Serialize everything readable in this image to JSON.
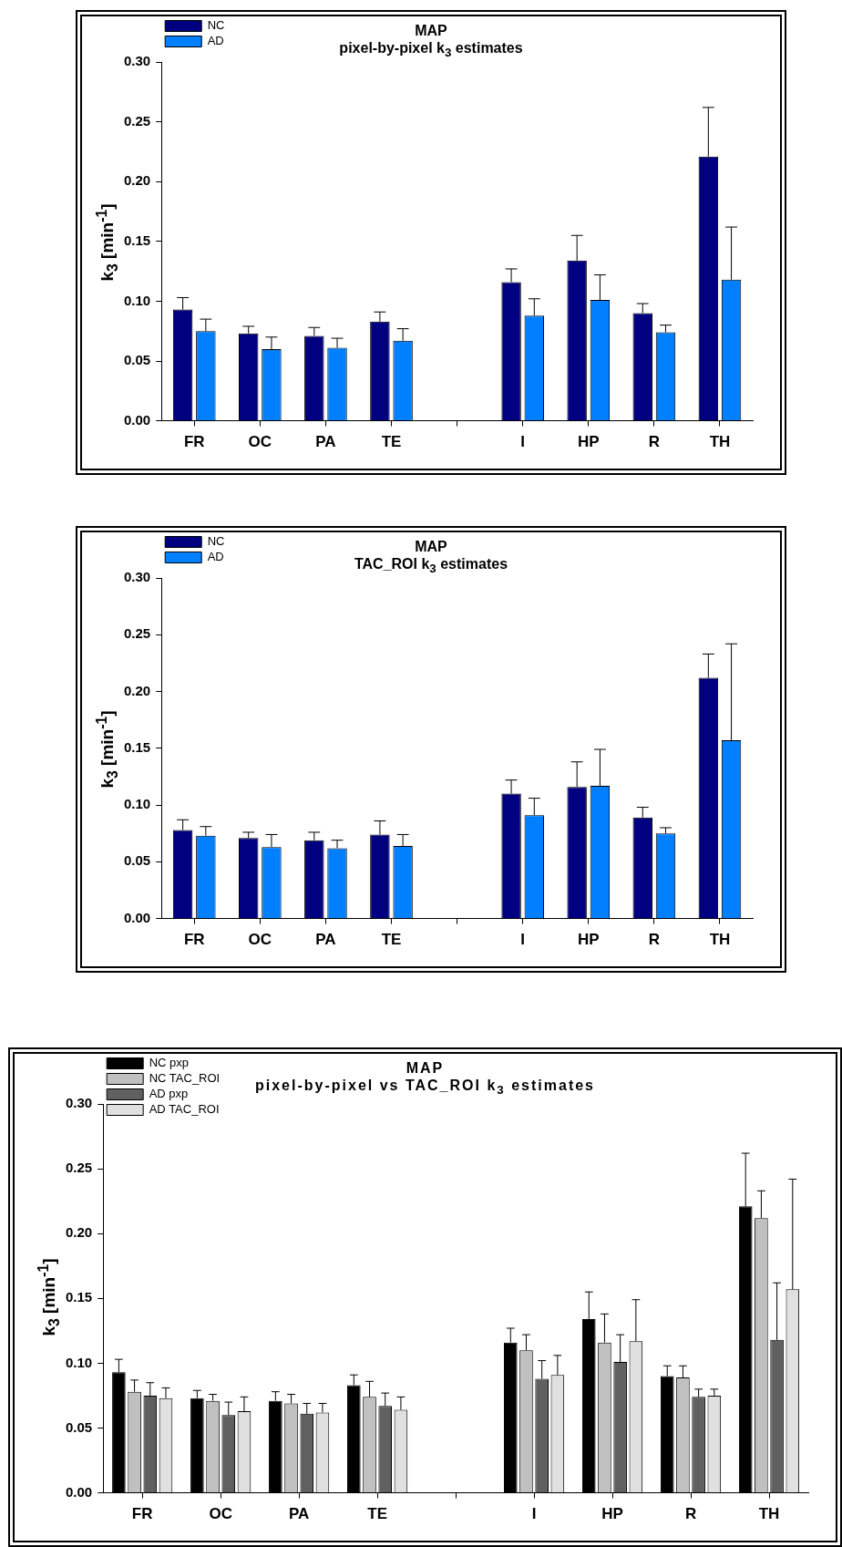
{
  "chart_data": [
    {
      "type": "bar",
      "title": "MAP",
      "subtitle": "pixel-by-pixel k$_{3}$ estimates",
      "ylabel": "k$_{3}$ [min$^{-1}$]",
      "categories": [
        "FR",
        "OC",
        "PA",
        "TE",
        null,
        "I",
        "HP",
        "R",
        "TH"
      ],
      "series": [
        {
          "name": "NC",
          "color": "#000080",
          "values": [
            0.093,
            0.073,
            0.071,
            0.083,
            null,
            0.116,
            0.134,
            0.09,
            0.221
          ],
          "errors": [
            [
              0.093,
              0.103
            ],
            [
              0.073,
              0.079
            ],
            [
              0.071,
              0.078
            ],
            [
              0.083,
              0.091
            ],
            null,
            [
              0.116,
              0.127
            ],
            [
              0.134,
              0.155
            ],
            [
              0.09,
              0.098
            ],
            [
              0.221,
              0.262
            ]
          ]
        },
        {
          "name": "AD",
          "color": "#0080ff",
          "values": [
            0.075,
            0.06,
            0.061,
            0.067,
            null,
            0.088,
            0.101,
            0.074,
            0.118
          ],
          "errors": [
            [
              0.075,
              0.085
            ],
            [
              0.06,
              0.07
            ],
            [
              0.061,
              0.069
            ],
            [
              0.067,
              0.077
            ],
            null,
            [
              0.088,
              0.102
            ],
            [
              0.101,
              0.122
            ],
            [
              0.074,
              0.08
            ],
            [
              0.118,
              0.162
            ]
          ]
        }
      ],
      "ylim": [
        0,
        0.3
      ],
      "yticks": [
        {
          "value": 0,
          "label": "0.00"
        },
        {
          "value": 0.05,
          "label": "0.05"
        },
        {
          "value": 0.1,
          "label": "0.10"
        },
        {
          "value": 0.15,
          "label": "0.15"
        },
        {
          "value": 0.2,
          "label": "0.20"
        },
        {
          "value": 0.25,
          "label": "0.25"
        },
        {
          "value": 0.3,
          "label": "0.30"
        }
      ],
      "grid": false,
      "legend": "top left"
    },
    {
      "type": "bar",
      "title": "MAP",
      "subtitle": "TAC_ROI k$_{3}$ estimates",
      "ylabel": "k$_{3}$ [min$^{-1}$]",
      "categories": [
        "FR",
        "OC",
        "PA",
        "TE",
        null,
        "I",
        "HP",
        "R",
        "TH"
      ],
      "series": [
        {
          "name": "NC",
          "color": "#000080",
          "values": [
            0.078,
            0.071,
            0.069,
            0.074,
            null,
            0.11,
            0.116,
            0.089,
            0.212
          ],
          "errors": [
            [
              0.078,
              0.087
            ],
            [
              0.071,
              0.076
            ],
            [
              0.069,
              0.076
            ],
            [
              0.074,
              0.086
            ],
            null,
            [
              0.11,
              0.122
            ],
            [
              0.116,
              0.138
            ],
            [
              0.089,
              0.098
            ],
            [
              0.212,
              0.233
            ]
          ]
        },
        {
          "name": "AD",
          "color": "#0080ff",
          "values": [
            0.073,
            0.063,
            0.062,
            0.064,
            null,
            0.091,
            0.117,
            0.075,
            0.157
          ],
          "errors": [
            [
              0.073,
              0.081
            ],
            [
              0.063,
              0.074
            ],
            [
              0.062,
              0.069
            ],
            [
              0.064,
              0.074
            ],
            null,
            [
              0.091,
              0.106
            ],
            [
              0.117,
              0.149
            ],
            [
              0.075,
              0.08
            ],
            [
              0.157,
              0.242
            ]
          ]
        }
      ],
      "ylim": [
        0,
        0.3
      ],
      "yticks": [
        {
          "value": 0,
          "label": "0.00"
        },
        {
          "value": 0.05,
          "label": "0.05"
        },
        {
          "value": 0.1,
          "label": "0.10"
        },
        {
          "value": 0.15,
          "label": "0.15"
        },
        {
          "value": 0.2,
          "label": "0.20"
        },
        {
          "value": 0.25,
          "label": "0.25"
        },
        {
          "value": 0.3,
          "label": "0.30"
        }
      ],
      "grid": false,
      "legend": "top left"
    },
    {
      "type": "bar",
      "title": "MAP",
      "subtitle": "pixel-by-pixel vs TAC_ROI k$_{3}$ estimates",
      "ylabel": "k$_{3}$ [min$^{-1}$]",
      "categories": [
        "FR",
        "OC",
        "PA",
        "TE",
        null,
        "I",
        "HP",
        "R",
        "TH"
      ],
      "series": [
        {
          "name": "NC pxp",
          "color": "#000000",
          "values": [
            0.093,
            0.073,
            0.071,
            0.083,
            null,
            0.116,
            0.134,
            0.09,
            0.221
          ],
          "errors": [
            [
              0.093,
              0.103
            ],
            [
              0.073,
              0.079
            ],
            [
              0.071,
              0.078
            ],
            [
              0.083,
              0.091
            ],
            null,
            [
              0.116,
              0.127
            ],
            [
              0.134,
              0.155
            ],
            [
              0.09,
              0.098
            ],
            [
              0.221,
              0.262
            ]
          ]
        },
        {
          "name": "NC TAC_ROI",
          "color": "#c0c0c0",
          "values": [
            0.078,
            0.071,
            0.069,
            0.074,
            null,
            0.11,
            0.116,
            0.089,
            0.212
          ],
          "errors": [
            [
              0.078,
              0.087
            ],
            [
              0.071,
              0.076
            ],
            [
              0.069,
              0.076
            ],
            [
              0.074,
              0.086
            ],
            null,
            [
              0.11,
              0.122
            ],
            [
              0.116,
              0.138
            ],
            [
              0.089,
              0.098
            ],
            [
              0.212,
              0.233
            ]
          ]
        },
        {
          "name": "AD pxp",
          "color": "#606060",
          "values": [
            0.075,
            0.06,
            0.061,
            0.067,
            null,
            0.088,
            0.101,
            0.074,
            0.118
          ],
          "errors": [
            [
              0.075,
              0.085
            ],
            [
              0.06,
              0.07
            ],
            [
              0.061,
              0.069
            ],
            [
              0.067,
              0.077
            ],
            null,
            [
              0.088,
              0.102
            ],
            [
              0.101,
              0.122
            ],
            [
              0.074,
              0.08
            ],
            [
              0.118,
              0.162
            ]
          ]
        },
        {
          "name": "AD TAC_ROI",
          "color": "#e0e0e0",
          "values": [
            0.073,
            0.063,
            0.062,
            0.064,
            null,
            0.091,
            0.117,
            0.075,
            0.157
          ],
          "errors": [
            [
              0.073,
              0.081
            ],
            [
              0.063,
              0.074
            ],
            [
              0.062,
              0.069
            ],
            [
              0.064,
              0.074
            ],
            null,
            [
              0.091,
              0.106
            ],
            [
              0.117,
              0.149
            ],
            [
              0.075,
              0.08
            ],
            [
              0.157,
              0.242
            ]
          ]
        }
      ],
      "ylim": [
        0,
        0.3
      ],
      "yticks": [
        {
          "value": 0,
          "label": "0.00"
        },
        {
          "value": 0.05,
          "label": "0.05"
        },
        {
          "value": 0.1,
          "label": "0.10"
        },
        {
          "value": 0.15,
          "label": "0.15"
        },
        {
          "value": 0.2,
          "label": "0.20"
        },
        {
          "value": 0.25,
          "label": "0.25"
        },
        {
          "value": 0.3,
          "label": "0.30"
        }
      ],
      "grid": false,
      "legend": "top left"
    }
  ]
}
